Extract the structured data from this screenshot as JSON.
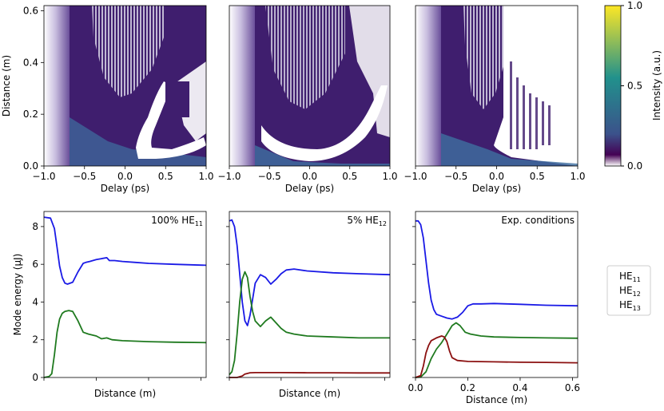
{
  "colors": {
    "hm_dark": "#3f1e6e",
    "hm_mid": "#3f6fa0",
    "hm_light": "#ffffff",
    "hm_band": "#e9e2f0",
    "hm_left": "#7e6aa8",
    "he11": "#1a1ae6",
    "he12": "#1f7a1f",
    "he13": "#8b1010",
    "cb_top": "#fde725",
    "cb_mid": "#21918c",
    "cb_lowmid": "#3b528b",
    "cb_low": "#440154"
  },
  "colorbar": {
    "label": "Intensity (a.u.)",
    "ticks": [
      "1.0",
      "0.5",
      "0.0"
    ]
  },
  "heatmaps": [
    {
      "xlabel": "Delay (ps)",
      "ylabel": "Distance (m)",
      "xticks": [
        "−1.0",
        "−0.5",
        "0.0",
        "0.5",
        "1.0"
      ],
      "yticks": [
        "0.6",
        "0.4",
        "0.2",
        "0.0"
      ]
    },
    {
      "xlabel": "Delay (ps)",
      "xticks": [
        "−1.0",
        "−0.5",
        "0.0",
        "0.5",
        "1.0"
      ]
    },
    {
      "xlabel": "Delay (ps)",
      "xticks": [
        "−1.0",
        "−0.5",
        "0.0",
        "0.5",
        "1.0"
      ]
    }
  ],
  "chart_data": [
    {
      "type": "line",
      "title": "100% HE",
      "title_sub": "11",
      "xlabel": "Distance (m)",
      "ylabel": "Mode energy (μJ)",
      "yticks": [
        "8",
        "6",
        "4",
        "2",
        "0"
      ],
      "xlim": [
        0,
        0.62
      ],
      "ylim": [
        0,
        8.8
      ],
      "series": [
        {
          "color_key": "he11",
          "x": [
            0,
            0.025,
            0.04,
            0.05,
            0.06,
            0.07,
            0.08,
            0.09,
            0.11,
            0.13,
            0.15,
            0.16,
            0.175,
            0.2,
            0.22,
            0.24,
            0.25,
            0.27,
            0.3,
            0.35,
            0.4,
            0.5,
            0.62
          ],
          "y": [
            8.5,
            8.45,
            7.9,
            6.9,
            5.9,
            5.3,
            5.0,
            4.95,
            5.05,
            5.6,
            6.05,
            6.1,
            6.15,
            6.25,
            6.3,
            6.35,
            6.2,
            6.2,
            6.15,
            6.1,
            6.05,
            6.0,
            5.95
          ]
        },
        {
          "color_key": "he12",
          "x": [
            0,
            0.02,
            0.03,
            0.04,
            0.05,
            0.06,
            0.07,
            0.08,
            0.095,
            0.11,
            0.13,
            0.15,
            0.17,
            0.2,
            0.22,
            0.24,
            0.26,
            0.3,
            0.4,
            0.5,
            0.62
          ],
          "y": [
            0,
            0.05,
            0.2,
            1.2,
            2.4,
            3.1,
            3.4,
            3.5,
            3.55,
            3.5,
            3.0,
            2.4,
            2.3,
            2.2,
            2.05,
            2.1,
            2.0,
            1.95,
            1.9,
            1.87,
            1.85
          ]
        }
      ]
    },
    {
      "type": "line",
      "title": "5% HE",
      "title_sub": "12",
      "xlabel": "Distance (m)",
      "xlim": [
        0,
        0.62
      ],
      "ylim": [
        0,
        8.8
      ],
      "series": [
        {
          "color_key": "he11",
          "x": [
            0,
            0.01,
            0.02,
            0.03,
            0.04,
            0.05,
            0.06,
            0.07,
            0.08,
            0.1,
            0.12,
            0.14,
            0.16,
            0.18,
            0.2,
            0.22,
            0.25,
            0.3,
            0.4,
            0.5,
            0.62
          ],
          "y": [
            8.3,
            8.35,
            8.0,
            7.0,
            5.5,
            4.0,
            3.0,
            2.75,
            3.3,
            5.0,
            5.45,
            5.3,
            4.95,
            5.2,
            5.5,
            5.7,
            5.75,
            5.65,
            5.55,
            5.5,
            5.45
          ]
        },
        {
          "color_key": "he12",
          "x": [
            0,
            0.01,
            0.02,
            0.03,
            0.04,
            0.05,
            0.06,
            0.07,
            0.08,
            0.09,
            0.1,
            0.12,
            0.14,
            0.16,
            0.18,
            0.2,
            0.22,
            0.25,
            0.3,
            0.4,
            0.5,
            0.62
          ],
          "y": [
            0.15,
            0.3,
            0.9,
            2.3,
            4.0,
            5.2,
            5.6,
            5.3,
            4.3,
            3.5,
            3.0,
            2.7,
            3.0,
            3.2,
            2.9,
            2.6,
            2.4,
            2.3,
            2.2,
            2.15,
            2.1,
            2.1
          ]
        },
        {
          "color_key": "he13",
          "x": [
            0,
            0.03,
            0.05,
            0.06,
            0.08,
            0.1,
            0.2,
            0.3,
            0.4,
            0.5,
            0.62
          ],
          "y": [
            0,
            0.0,
            0.08,
            0.18,
            0.25,
            0.26,
            0.26,
            0.25,
            0.25,
            0.24,
            0.24
          ]
        }
      ]
    },
    {
      "type": "line",
      "title": "Exp. conditions",
      "xlabel": "Distance (m)",
      "xticks": [
        "0.0",
        "0.2",
        "0.4",
        "0.6"
      ],
      "xtick_values": [
        0,
        0.2,
        0.4,
        0.6
      ],
      "xlim": [
        0,
        0.62
      ],
      "ylim": [
        0,
        8.8
      ],
      "series": [
        {
          "color_key": "he11",
          "x": [
            0,
            0.01,
            0.02,
            0.03,
            0.04,
            0.05,
            0.06,
            0.07,
            0.08,
            0.1,
            0.12,
            0.14,
            0.16,
            0.18,
            0.2,
            0.22,
            0.25,
            0.3,
            0.35,
            0.4,
            0.5,
            0.62
          ],
          "y": [
            8.3,
            8.3,
            8.1,
            7.4,
            6.2,
            5.0,
            4.1,
            3.6,
            3.35,
            3.25,
            3.15,
            3.1,
            3.2,
            3.45,
            3.8,
            3.9,
            3.9,
            3.92,
            3.9,
            3.88,
            3.83,
            3.8
          ]
        },
        {
          "color_key": "he12",
          "x": [
            0,
            0.02,
            0.04,
            0.06,
            0.08,
            0.1,
            0.12,
            0.14,
            0.155,
            0.17,
            0.19,
            0.21,
            0.25,
            0.3,
            0.4,
            0.5,
            0.62
          ],
          "y": [
            0,
            0.02,
            0.3,
            1.0,
            1.5,
            1.85,
            2.3,
            2.75,
            2.9,
            2.75,
            2.4,
            2.3,
            2.2,
            2.15,
            2.12,
            2.1,
            2.08
          ]
        },
        {
          "color_key": "he13",
          "x": [
            0,
            0.02,
            0.03,
            0.04,
            0.05,
            0.06,
            0.08,
            0.1,
            0.11,
            0.12,
            0.13,
            0.14,
            0.16,
            0.2,
            0.3,
            0.4,
            0.5,
            0.62
          ],
          "y": [
            0,
            0.1,
            0.6,
            1.3,
            1.7,
            1.95,
            2.1,
            2.2,
            2.15,
            1.9,
            1.4,
            1.05,
            0.9,
            0.85,
            0.83,
            0.81,
            0.8,
            0.78
          ]
        }
      ]
    }
  ],
  "legend": [
    {
      "label": "HE",
      "sub": "11",
      "color_key": "he11"
    },
    {
      "label": "HE",
      "sub": "12",
      "color_key": "he12"
    },
    {
      "label": "HE",
      "sub": "13",
      "color_key": "he13"
    }
  ]
}
